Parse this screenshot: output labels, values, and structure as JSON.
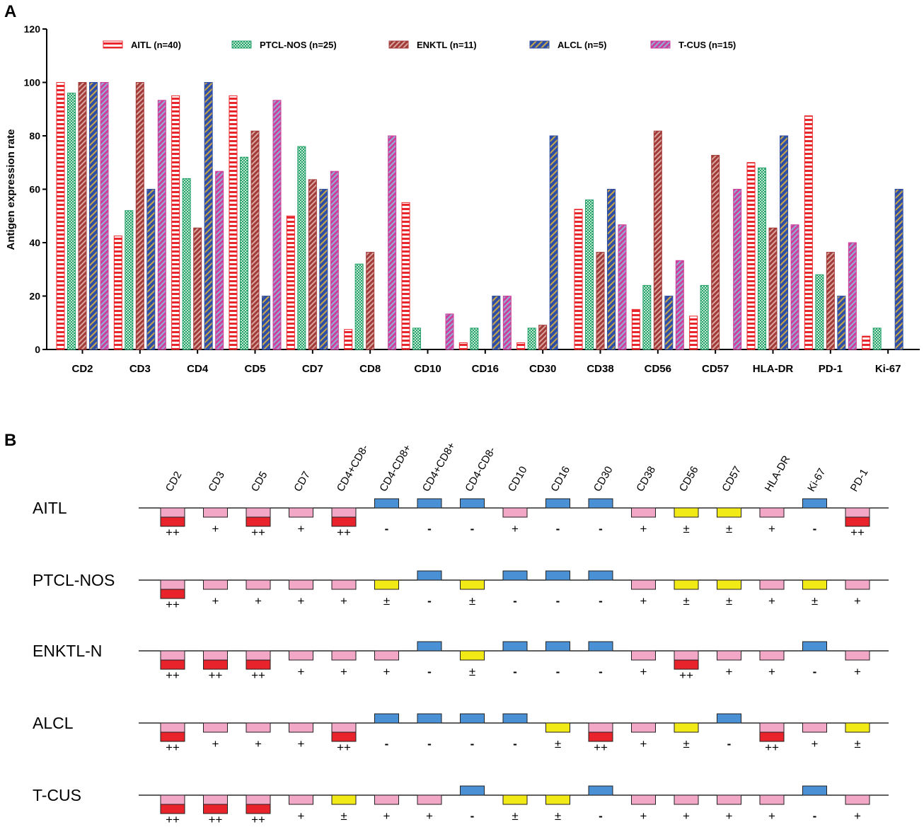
{
  "chart_data": [
    {
      "panel_label": "A",
      "type": "bar",
      "title": "",
      "xlabel": "",
      "ylabel": "Antigen expression rate",
      "ylim": [
        0,
        120
      ],
      "yticks": [
        "0",
        "20",
        "40",
        "60",
        "80",
        "100",
        "120"
      ],
      "grid": false,
      "legend_position": "top",
      "categories": [
        "CD2",
        "CD3",
        "CD4",
        "CD5",
        "CD7",
        "CD8",
        "CD10",
        "CD16",
        "CD30",
        "CD38",
        "CD56",
        "CD57",
        "HLA-DR",
        "PD-1",
        "Ki-67"
      ],
      "series": [
        {
          "name": "AITL (n=40)",
          "color": "#e8262b",
          "pattern": "horizontal-stripes",
          "values": [
            100,
            42.5,
            95,
            95,
            50,
            7.5,
            55,
            2.5,
            2.5,
            52.5,
            15,
            12.5,
            70,
            87.5,
            5
          ]
        },
        {
          "name": "PTCL-NOS (n=25)",
          "color": "#27a26b",
          "pattern": "checks",
          "values": [
            96,
            52,
            64,
            72,
            76,
            32,
            8,
            8,
            8,
            56,
            24,
            24,
            68,
            28,
            8
          ]
        },
        {
          "name": "ENKTL (n=11)",
          "color": "#a23a38",
          "pattern": "diagonal-stripes",
          "values": [
            100,
            100,
            45.5,
            81.8,
            63.6,
            36.4,
            0,
            0,
            9.1,
            36.4,
            81.8,
            72.7,
            45.5,
            36.4,
            0
          ]
        },
        {
          "name": "ALCL (n=5)",
          "color": "#2f4fa6",
          "pattern": "diagonal-stripes",
          "values": [
            100,
            60,
            100,
            20,
            60,
            0,
            0,
            20,
            80,
            60,
            20,
            0,
            80,
            20,
            60
          ]
        },
        {
          "name": "T-CUS (n=15)",
          "color": "#cf3f9a",
          "pattern": "diagonal-stripes",
          "values": [
            100,
            93.3,
            66.7,
            93.3,
            66.7,
            80,
            13.3,
            20,
            0,
            46.7,
            33.3,
            60,
            46.7,
            40,
            0
          ]
        }
      ]
    },
    {
      "panel_label": "B",
      "type": "heatmap",
      "title": "",
      "markers": [
        "CD2",
        "CD3",
        "CD5",
        "CD7",
        "CD4+CD8-",
        "CD4-CD8+",
        "CD4+CD8+",
        "CD4-CD8-",
        "CD10",
        "CD16",
        "CD30",
        "CD38",
        "CD56",
        "CD57",
        "HLA-DR",
        "Ki-67",
        "PD-1"
      ],
      "level_colors": {
        "++": "#e8232b",
        "+": "#f2a7c6",
        "±": "#f2ea16",
        "-": "#4a90d4"
      },
      "rows": [
        {
          "name": "AITL",
          "levels": [
            "++",
            "+",
            "++",
            "+",
            "++",
            "-",
            "-",
            "-",
            "+",
            "-",
            "-",
            "+",
            "±",
            "±",
            "+",
            "-",
            "++"
          ]
        },
        {
          "name": "PTCL-NOS",
          "levels": [
            "++",
            "+",
            "+",
            "+",
            "+",
            "±",
            "-",
            "±",
            "-",
            "-",
            "-",
            "+",
            "±",
            "±",
            "+",
            "±",
            "+"
          ]
        },
        {
          "name": "ENKTL-N",
          "levels": [
            "++",
            "++",
            "++",
            "+",
            "+",
            "+",
            "-",
            "±",
            "-",
            "-",
            "-",
            "+",
            "++",
            "+",
            "+",
            "-",
            "+"
          ]
        },
        {
          "name": "ALCL",
          "levels": [
            "++",
            "+",
            "+",
            "+",
            "++",
            "-",
            "-",
            "-",
            "-",
            "±",
            "++",
            "+",
            "±",
            "-",
            "++",
            "+",
            "±"
          ]
        },
        {
          "name": "T-CUS",
          "levels": [
            "++",
            "++",
            "++",
            "+",
            "±",
            "+",
            "+",
            "-",
            "±",
            "±",
            "-",
            "+",
            "+",
            "+",
            "+",
            "-",
            "+"
          ]
        }
      ]
    }
  ]
}
